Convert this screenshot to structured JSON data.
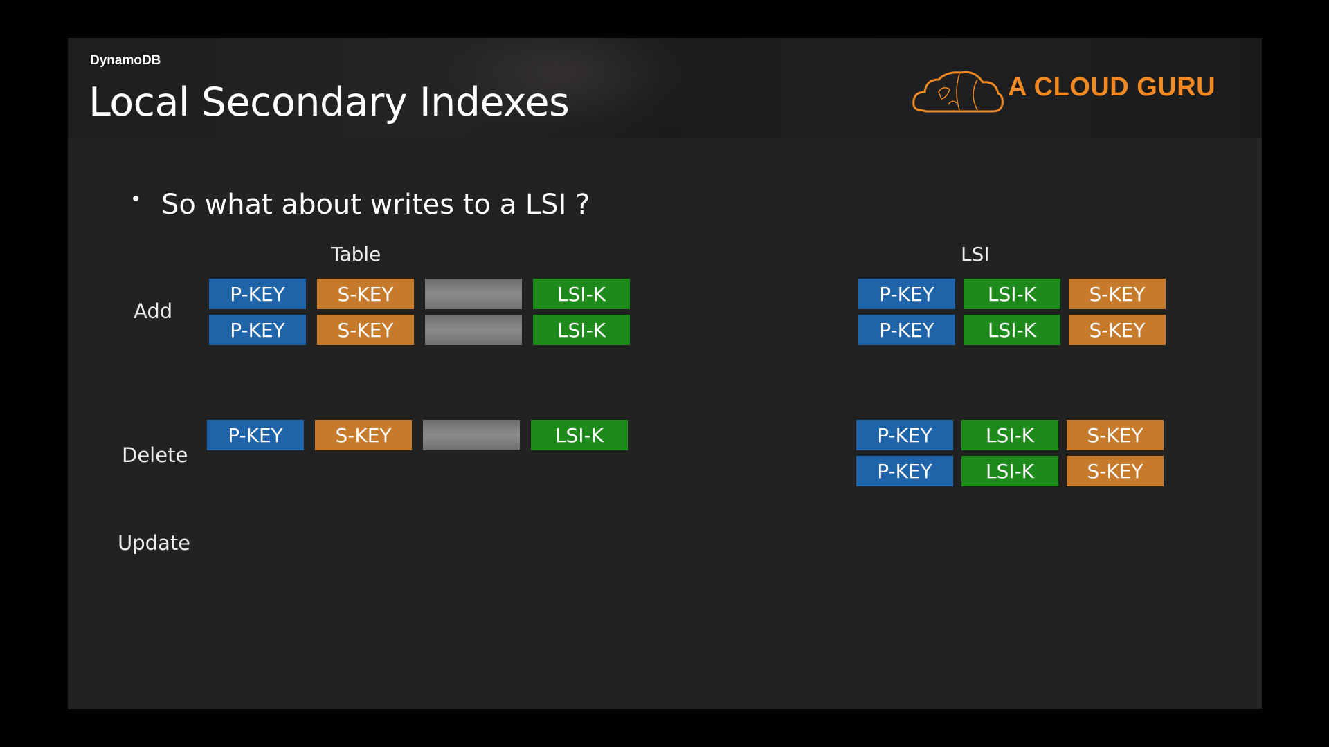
{
  "header": {
    "section_label": "DynamoDB",
    "title": "Local Secondary Indexes",
    "logo_text": "A CLOUD GURU",
    "logo_icon": "cloud-icon",
    "brand_color": "#f08a24"
  },
  "bullet": {
    "marker": "•",
    "text": "So what about writes to a LSI ?"
  },
  "headings": {
    "table": "Table",
    "lsi": "LSI"
  },
  "row_labels": {
    "add": "Add",
    "delete": "Delete",
    "update": "Update"
  },
  "keys": {
    "pkey": "P-KEY",
    "skey": "S-KEY",
    "lsik": "LSI-K",
    "blank": ""
  },
  "colors": {
    "pkey": "#1f63a8",
    "skey": "#c67a2c",
    "lsik": "#1f8a1c",
    "blank": "#808080",
    "background": "#222222"
  }
}
